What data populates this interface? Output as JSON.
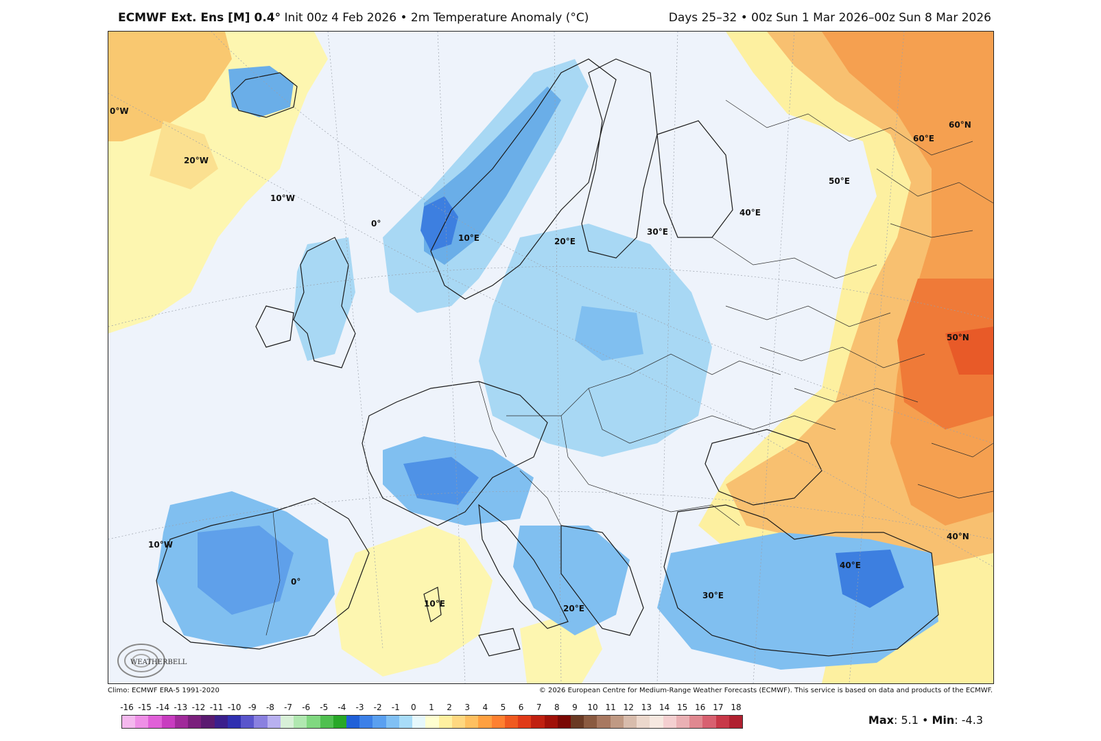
{
  "header": {
    "title_bold": "ECMWF Ext. Ens [M] 0.4°",
    "title_rest": " Init 00z 4 Feb 2026 • 2m Temperature Anomaly (°C)",
    "valid": "Days 25–32 • 00z Sun 1 Mar 2026–00z Sun 8 Mar 2026"
  },
  "map": {
    "grid_labels": [
      "0°W",
      "20°W",
      "10°W",
      "0°",
      "10°E",
      "20°E",
      "30°E",
      "40°E",
      "50°E",
      "60°E",
      "60°N",
      "50°N",
      "40°N",
      "10°W",
      "0°",
      "10°E",
      "20°E",
      "30°E",
      "40°E"
    ],
    "logo_text": "WEATHERBELL"
  },
  "footer": {
    "climo": "Climo: ECMWF ERA-5 1991-2020",
    "copyright": "© 2026 European Centre for Medium-Range Weather Forecasts (ECMWF). This service is based on data and products of the ECMWF."
  },
  "legend": {
    "ticks": [
      "-16",
      "-15",
      "-14",
      "-13",
      "-12",
      "-11",
      "-10",
      "-9",
      "-8",
      "-7",
      "-6",
      "-5",
      "-4",
      "-3",
      "-2",
      "-1",
      "0",
      "1",
      "2",
      "3",
      "4",
      "5",
      "6",
      "7",
      "8",
      "9",
      "10",
      "11",
      "12",
      "13",
      "14",
      "15",
      "16",
      "17",
      "18"
    ],
    "colors": [
      "#f4b8ee",
      "#ee8fe6",
      "#e060d8",
      "#c83cc0",
      "#a02a9a",
      "#7a1f7c",
      "#5a1a70",
      "#3b1f8c",
      "#3030b0",
      "#5a55cc",
      "#8a80e0",
      "#b8b0f0",
      "#d8f0d8",
      "#b0e8b0",
      "#80d880",
      "#50c050",
      "#28a828",
      "#2060d8",
      "#3c80e8",
      "#5aa0f0",
      "#80c0f4",
      "#a8dcf8",
      "#e6f8fc",
      "#ffffd0",
      "#fff0a0",
      "#ffd880",
      "#ffc060",
      "#ffa040",
      "#ff8030",
      "#f05a20",
      "#e03a18",
      "#c02010",
      "#a01008",
      "#7a0804",
      "#6a3a24",
      "#8a5a40",
      "#a87860",
      "#c09a84",
      "#d8bcac",
      "#ecd8cc",
      "#f6e8e0",
      "#f4cfd0",
      "#eab0b4",
      "#e08890",
      "#d86070",
      "#c83848",
      "#b02030"
    ],
    "max_label": "Max",
    "max_value": ": 5.1 • ",
    "min_label": "Min",
    "min_value": ": -4.3"
  },
  "colors": {
    "cold_strong": "#3d7fe0",
    "cold": "#a8d8f4",
    "neutral": "#eef3fb",
    "warm_light": "#fdf6b0",
    "warm": "#f7b060",
    "warm_strong": "#f07030"
  }
}
